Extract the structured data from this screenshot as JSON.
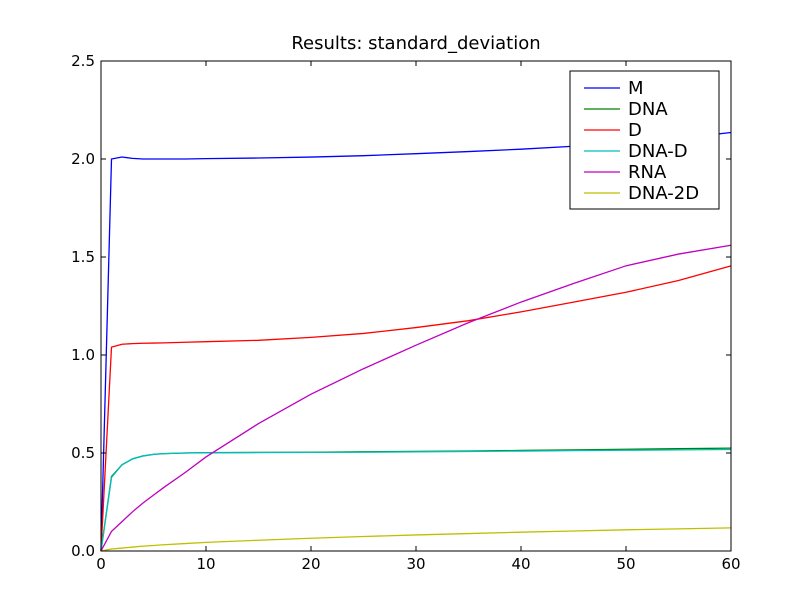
{
  "chart_data": {
    "type": "line",
    "title": "Results: standard_deviation",
    "xlabel": "",
    "ylabel": "",
    "xlim": [
      0,
      60
    ],
    "ylim": [
      0.0,
      2.5
    ],
    "xticks": [
      0,
      10,
      20,
      30,
      40,
      50,
      60
    ],
    "xtick_labels": [
      "0",
      "10",
      "20",
      "30",
      "40",
      "50",
      "60"
    ],
    "yticks": [
      0.0,
      0.5,
      1.0,
      1.5,
      2.0,
      2.5
    ],
    "ytick_labels": [
      "0.0",
      "0.5",
      "1.0",
      "1.5",
      "2.0",
      "2.5"
    ],
    "grid": false,
    "legend_position": "top-right",
    "x": [
      0,
      1,
      2,
      3,
      4,
      5,
      6,
      8,
      10,
      15,
      20,
      25,
      30,
      35,
      40,
      45,
      50,
      55,
      60
    ],
    "series": [
      {
        "name": "M",
        "color": "#0000ff",
        "values": [
          0.0,
          2.0,
          2.01,
          2.003,
          2.0,
          2.0,
          2.0,
          2.0,
          2.002,
          2.005,
          2.01,
          2.017,
          2.027,
          2.038,
          2.05,
          2.065,
          2.08,
          2.105,
          2.135
        ]
      },
      {
        "name": "DNA",
        "color": "#008000",
        "values": [
          0.0,
          0.38,
          0.44,
          0.47,
          0.485,
          0.493,
          0.497,
          0.5,
          0.502,
          0.503,
          0.504,
          0.506,
          0.508,
          0.51,
          0.513,
          0.516,
          0.519,
          0.522,
          0.525
        ]
      },
      {
        "name": "D",
        "color": "#ff0000",
        "values": [
          0.0,
          1.04,
          1.055,
          1.058,
          1.06,
          1.061,
          1.062,
          1.065,
          1.068,
          1.075,
          1.09,
          1.11,
          1.14,
          1.175,
          1.22,
          1.27,
          1.32,
          1.38,
          1.455
        ]
      },
      {
        "name": "DNA-D",
        "color": "#00bfbf",
        "values": [
          0.0,
          0.375,
          0.44,
          0.47,
          0.485,
          0.493,
          0.497,
          0.5,
          0.501,
          0.502,
          0.503,
          0.504,
          0.506,
          0.508,
          0.51,
          0.512,
          0.514,
          0.516,
          0.518
        ]
      },
      {
        "name": "RNA",
        "color": "#bf00bf",
        "values": [
          0.0,
          0.1,
          0.15,
          0.2,
          0.245,
          0.285,
          0.325,
          0.4,
          0.48,
          0.65,
          0.8,
          0.93,
          1.05,
          1.165,
          1.27,
          1.365,
          1.455,
          1.515,
          1.56
        ]
      },
      {
        "name": "DNA-2D",
        "color": "#bfbf00",
        "values": [
          0.0,
          0.01,
          0.015,
          0.02,
          0.025,
          0.028,
          0.032,
          0.038,
          0.044,
          0.055,
          0.065,
          0.074,
          0.082,
          0.089,
          0.096,
          0.102,
          0.108,
          0.113,
          0.118
        ]
      }
    ]
  }
}
